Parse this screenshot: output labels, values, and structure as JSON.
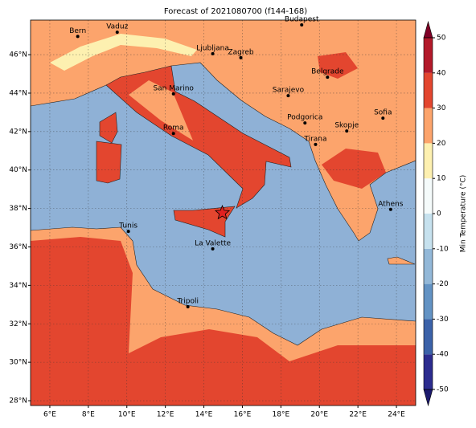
{
  "title": "Forecast of 2021080700 (f144-168)",
  "map": {
    "xlim": [
      5,
      25
    ],
    "ylim": [
      27.75,
      47.8
    ],
    "xticks": [
      {
        "value": 6,
        "label": "6°E"
      },
      {
        "value": 8,
        "label": "8°E"
      },
      {
        "value": 10,
        "label": "10°E"
      },
      {
        "value": 12,
        "label": "12°E"
      },
      {
        "value": 14,
        "label": "14°E"
      },
      {
        "value": 16,
        "label": "16°E"
      },
      {
        "value": 18,
        "label": "18°E"
      },
      {
        "value": 20,
        "label": "20°E"
      },
      {
        "value": 22,
        "label": "22°E"
      },
      {
        "value": 24,
        "label": "24°E"
      }
    ],
    "yticks": [
      {
        "value": 28,
        "label": "28°N"
      },
      {
        "value": 30,
        "label": "30°N"
      },
      {
        "value": 32,
        "label": "32°N"
      },
      {
        "value": 34,
        "label": "34°N"
      },
      {
        "value": 36,
        "label": "36°N"
      },
      {
        "value": 38,
        "label": "38°N"
      },
      {
        "value": 40,
        "label": "40°N"
      },
      {
        "value": 42,
        "label": "42°N"
      },
      {
        "value": 44,
        "label": "44°N"
      },
      {
        "value": 46,
        "label": "46°N"
      }
    ],
    "cities": [
      {
        "name": "Bern",
        "lon": 7.45,
        "lat": 46.95
      },
      {
        "name": "Vaduz",
        "lon": 9.5,
        "lat": 47.17
      },
      {
        "name": "Budapest",
        "lon": 19.08,
        "lat": 47.55
      },
      {
        "name": "Ljubljana",
        "lon": 14.46,
        "lat": 46.05
      },
      {
        "name": "Zagreb",
        "lon": 15.92,
        "lat": 45.84
      },
      {
        "name": "San Marino",
        "lon": 12.42,
        "lat": 43.96
      },
      {
        "name": "Sarajevo",
        "lon": 18.38,
        "lat": 43.87
      },
      {
        "name": "Belgrade",
        "lon": 20.42,
        "lat": 44.83
      },
      {
        "name": "Sofia",
        "lon": 23.3,
        "lat": 42.7
      },
      {
        "name": "Podgorica",
        "lon": 19.25,
        "lat": 42.45
      },
      {
        "name": "Skopje",
        "lon": 21.42,
        "lat": 42.03
      },
      {
        "name": "Roma",
        "lon": 12.42,
        "lat": 41.9
      },
      {
        "name": "Tirana",
        "lon": 19.8,
        "lat": 41.33
      },
      {
        "name": "Athens",
        "lon": 23.7,
        "lat": 37.95
      },
      {
        "name": "Tunis",
        "lon": 10.08,
        "lat": 36.81
      },
      {
        "name": "La Valette",
        "lon": 14.46,
        "lat": 35.9
      },
      {
        "name": "Tripoli",
        "lon": 13.17,
        "lat": 32.89
      }
    ],
    "marker": {
      "lon": 14.96,
      "lat": 37.77,
      "color": "#e02020"
    }
  },
  "colorbar": {
    "label": "Min Temperature (°C)",
    "levels": [
      -50,
      -40,
      -30,
      -20,
      -10,
      0,
      10,
      20,
      30,
      40,
      50
    ],
    "colors": [
      "#2c2c8f",
      "#3b62a9",
      "#6393c4",
      "#93b8d8",
      "#c6e1ee",
      "#f5fbfb",
      "#fdf0b0",
      "#fca46c",
      "#e3462f",
      "#b3192a"
    ],
    "extend_colors": [
      "#1c1a6e",
      "#800026"
    ],
    "ticks": [
      -50,
      -40,
      -30,
      -20,
      -10,
      0,
      10,
      20,
      30,
      40,
      50
    ]
  }
}
